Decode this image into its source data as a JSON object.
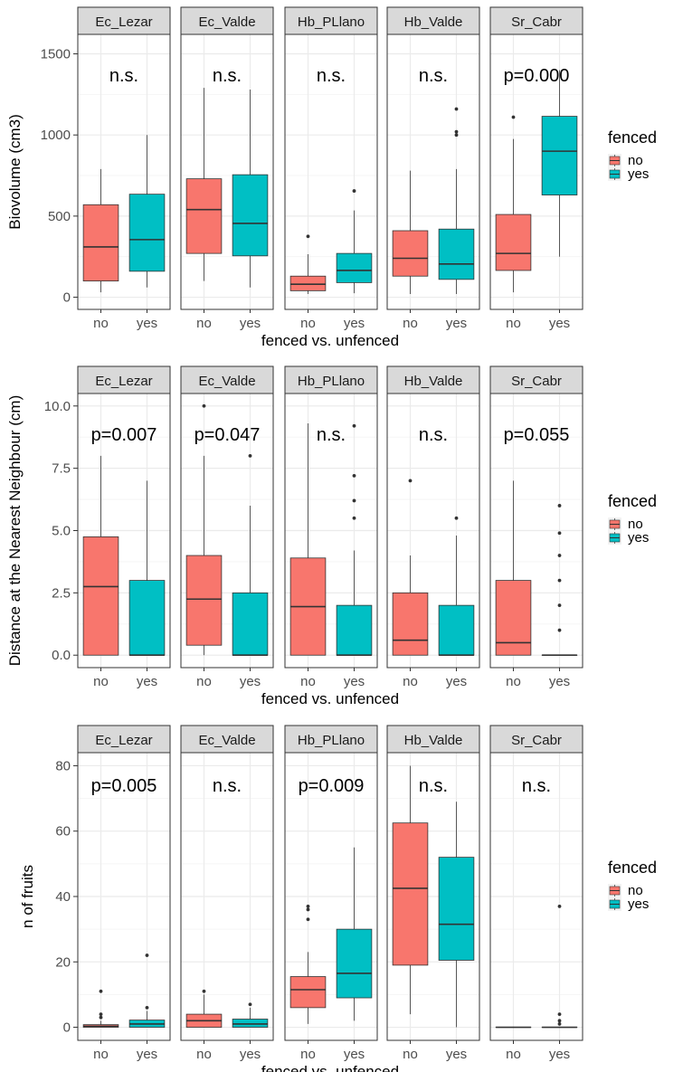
{
  "chart_data": [
    {
      "type": "boxplot",
      "title": "",
      "xlabel": "fenced vs. unfenced",
      "ylabel": "Biovolume (cm3)",
      "ylim": [
        -75,
        1620
      ],
      "yticks": [
        0,
        500,
        1000,
        1500
      ],
      "ytick_labels": [
        "0",
        "500",
        "1000",
        "1500"
      ],
      "categories": [
        "no",
        "yes"
      ],
      "legend": {
        "title": "fenced",
        "entries": [
          "no",
          "yes"
        ],
        "colors": [
          "#f8766d",
          "#00bfc4"
        ],
        "placement": "right"
      },
      "facets": [
        {
          "name": "Ec_Lezar",
          "annotation": "n.s.",
          "boxes": [
            {
              "group": "no",
              "min": 30,
              "q1": 100,
              "median": 310,
              "q3": 570,
              "max": 790,
              "outliers": []
            },
            {
              "group": "yes",
              "min": 60,
              "q1": 160,
              "median": 355,
              "q3": 635,
              "max": 1000,
              "outliers": []
            }
          ]
        },
        {
          "name": "Ec_Valde",
          "annotation": "n.s.",
          "boxes": [
            {
              "group": "no",
              "min": 100,
              "q1": 270,
              "median": 540,
              "q3": 730,
              "max": 1290,
              "outliers": []
            },
            {
              "group": "yes",
              "min": 60,
              "q1": 255,
              "median": 455,
              "q3": 755,
              "max": 1280,
              "outliers": []
            }
          ]
        },
        {
          "name": "Hb_PLlano",
          "annotation": "n.s.",
          "boxes": [
            {
              "group": "no",
              "min": 20,
              "q1": 40,
              "median": 80,
              "q3": 130,
              "max": 265,
              "outliers": [
                375
              ]
            },
            {
              "group": "yes",
              "min": 25,
              "q1": 90,
              "median": 165,
              "q3": 270,
              "max": 535,
              "outliers": [
                655
              ]
            }
          ]
        },
        {
          "name": "Hb_Valde",
          "annotation": "n.s.",
          "boxes": [
            {
              "group": "no",
              "min": 20,
              "q1": 130,
              "median": 240,
              "q3": 410,
              "max": 780,
              "outliers": []
            },
            {
              "group": "yes",
              "min": 20,
              "q1": 110,
              "median": 205,
              "q3": 420,
              "max": 790,
              "outliers": [
                1000,
                1020,
                1160
              ]
            }
          ]
        },
        {
          "name": "Sr_Cabr",
          "annotation": "p=0.000",
          "boxes": [
            {
              "group": "no",
              "min": 30,
              "q1": 165,
              "median": 270,
              "q3": 510,
              "max": 975,
              "outliers": [
                1110
              ]
            },
            {
              "group": "yes",
              "min": 250,
              "q1": 630,
              "median": 900,
              "q3": 1115,
              "max": 1400,
              "outliers": []
            }
          ]
        }
      ]
    },
    {
      "type": "boxplot",
      "title": "",
      "xlabel": "fenced vs. unfenced",
      "ylabel": "Distance at the Nearest Neighbour (cm)",
      "ylim": [
        -0.5,
        10.5
      ],
      "yticks": [
        0,
        2.5,
        5,
        7.5,
        10
      ],
      "ytick_labels": [
        "0.0",
        "2.5",
        "5.0",
        "7.5",
        "10.0"
      ],
      "categories": [
        "no",
        "yes"
      ],
      "legend": {
        "title": "fenced",
        "entries": [
          "no",
          "yes"
        ],
        "colors": [
          "#f8766d",
          "#00bfc4"
        ],
        "placement": "right"
      },
      "facets": [
        {
          "name": "Ec_Lezar",
          "annotation": "p=0.007",
          "boxes": [
            {
              "group": "no",
              "min": 0,
              "q1": 0,
              "median": 2.75,
              "q3": 4.75,
              "max": 8.0,
              "outliers": []
            },
            {
              "group": "yes",
              "min": 0,
              "q1": 0,
              "median": 0,
              "q3": 3.0,
              "max": 7.0,
              "outliers": []
            }
          ]
        },
        {
          "name": "Ec_Valde",
          "annotation": "p=0.047",
          "boxes": [
            {
              "group": "no",
              "min": 0,
              "q1": 0.4,
              "median": 2.25,
              "q3": 4.0,
              "max": 8.0,
              "outliers": [
                10.0
              ]
            },
            {
              "group": "yes",
              "min": 0,
              "q1": 0,
              "median": 0,
              "q3": 2.5,
              "max": 6.0,
              "outliers": [
                8.0
              ]
            }
          ]
        },
        {
          "name": "Hb_PLlano",
          "annotation": "n.s.",
          "boxes": [
            {
              "group": "no",
              "min": 0,
              "q1": 0,
              "median": 1.95,
              "q3": 3.9,
              "max": 9.3,
              "outliers": []
            },
            {
              "group": "yes",
              "min": 0,
              "q1": 0,
              "median": 0,
              "q3": 2.0,
              "max": 4.2,
              "outliers": [
                5.5,
                6.2,
                7.2,
                9.2
              ]
            }
          ]
        },
        {
          "name": "Hb_Valde",
          "annotation": "n.s.",
          "boxes": [
            {
              "group": "no",
              "min": 0,
              "q1": 0,
              "median": 0.6,
              "q3": 2.5,
              "max": 4.0,
              "outliers": [
                7.0
              ]
            },
            {
              "group": "yes",
              "min": 0,
              "q1": 0,
              "median": 0,
              "q3": 2.0,
              "max": 4.8,
              "outliers": [
                5.5
              ]
            }
          ]
        },
        {
          "name": "Sr_Cabr",
          "annotation": "p=0.055",
          "boxes": [
            {
              "group": "no",
              "min": 0,
              "q1": 0,
              "median": 0.5,
              "q3": 3.0,
              "max": 7.0,
              "outliers": []
            },
            {
              "group": "yes",
              "min": 0,
              "q1": 0,
              "median": 0,
              "q3": 0,
              "max": 0,
              "outliers": [
                1.0,
                2.0,
                3.0,
                4.0,
                4.9,
                6.0
              ]
            }
          ]
        }
      ]
    },
    {
      "type": "boxplot",
      "title": "",
      "xlabel": "fenced vs. unfenced",
      "ylabel": "n of fruits",
      "ylim": [
        -4,
        84
      ],
      "yticks": [
        0,
        20,
        40,
        60,
        80
      ],
      "ytick_labels": [
        "0",
        "20",
        "40",
        "60",
        "80"
      ],
      "categories": [
        "no",
        "yes"
      ],
      "legend": {
        "title": "fenced",
        "entries": [
          "no",
          "yes"
        ],
        "colors": [
          "#f8766d",
          "#00bfc4"
        ],
        "placement": "right"
      },
      "facets": [
        {
          "name": "Ec_Lezar",
          "annotation": "p=0.005",
          "boxes": [
            {
              "group": "no",
              "min": 0,
              "q1": 0,
              "median": 0.3,
              "q3": 0.8,
              "max": 2,
              "outliers": [
                3,
                4,
                11
              ]
            },
            {
              "group": "yes",
              "min": 0,
              "q1": 0,
              "median": 1.0,
              "q3": 2.2,
              "max": 5,
              "outliers": [
                6,
                22
              ]
            }
          ]
        },
        {
          "name": "Ec_Valde",
          "annotation": "n.s.",
          "boxes": [
            {
              "group": "no",
              "min": 0,
              "q1": 0,
              "median": 2,
              "q3": 4,
              "max": 10,
              "outliers": [
                11
              ]
            },
            {
              "group": "yes",
              "min": 0,
              "q1": 0,
              "median": 1,
              "q3": 2.5,
              "max": 6,
              "outliers": [
                7
              ]
            }
          ]
        },
        {
          "name": "Hb_PLlano",
          "annotation": "p=0.009",
          "boxes": [
            {
              "group": "no",
              "min": 1,
              "q1": 6,
              "median": 11.5,
              "q3": 15.5,
              "max": 23,
              "outliers": [
                33,
                36,
                37
              ]
            },
            {
              "group": "yes",
              "min": 2,
              "q1": 9,
              "median": 16.5,
              "q3": 30,
              "max": 55,
              "outliers": []
            }
          ]
        },
        {
          "name": "Hb_Valde",
          "annotation": "n.s.",
          "boxes": [
            {
              "group": "no",
              "min": 4,
              "q1": 19,
              "median": 42.5,
              "q3": 62.5,
              "max": 80,
              "outliers": []
            },
            {
              "group": "yes",
              "min": 0,
              "q1": 20.5,
              "median": 31.5,
              "q3": 52,
              "max": 69,
              "outliers": []
            }
          ]
        },
        {
          "name": "Sr_Cabr",
          "annotation": "n.s.",
          "boxes": [
            {
              "group": "no",
              "min": 0,
              "q1": 0,
              "median": 0,
              "q3": 0,
              "max": 0,
              "outliers": []
            },
            {
              "group": "yes",
              "min": 0,
              "q1": 0,
              "median": 0,
              "q3": 0,
              "max": 0,
              "outliers": [
                1,
                2,
                4,
                37
              ]
            }
          ]
        }
      ]
    }
  ]
}
